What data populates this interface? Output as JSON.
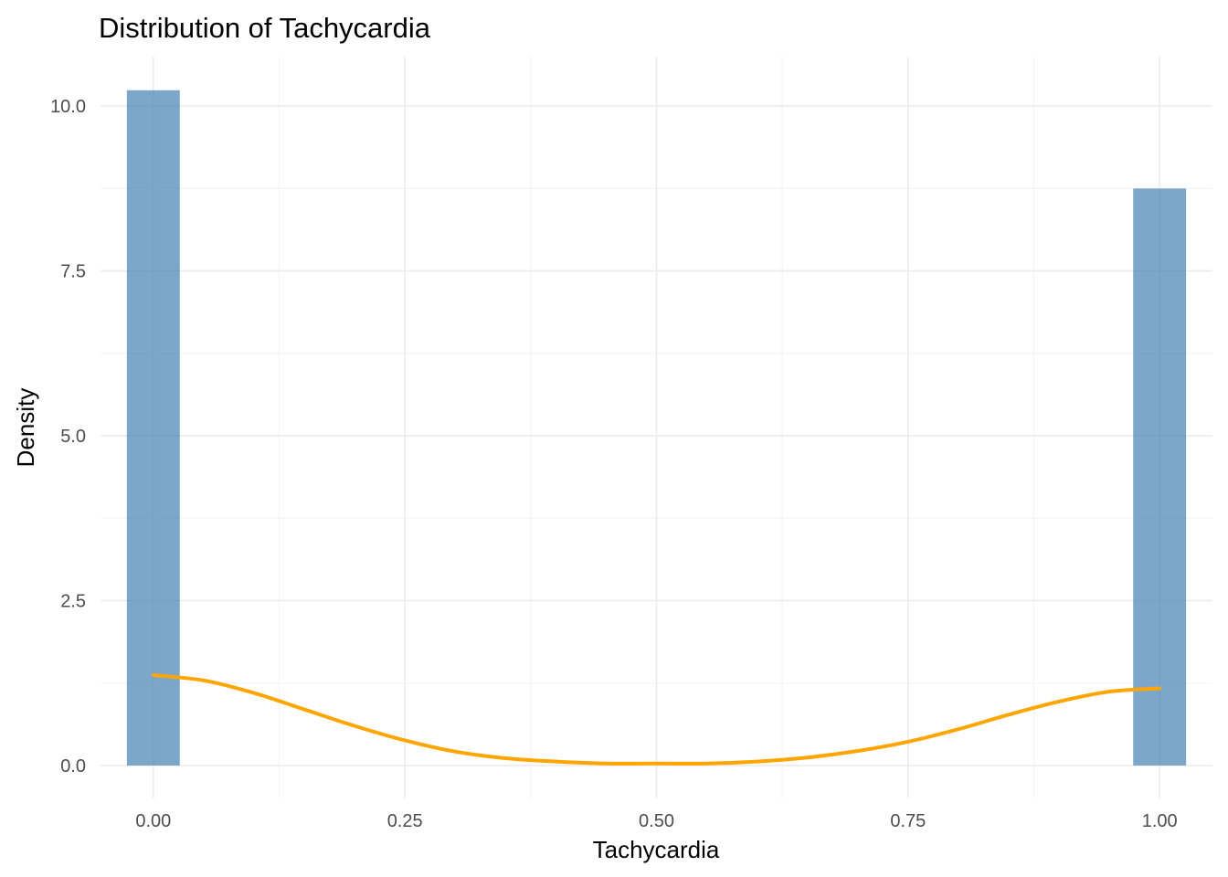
{
  "chart_data": {
    "type": "bar",
    "title": "Distribution of Tachycardia",
    "xlabel": "Tachycardia",
    "ylabel": "Density",
    "xlim": [
      -0.0525,
      1.0525
    ],
    "ylim": [
      -0.5,
      10.75
    ],
    "x_ticks": [
      0,
      0.25,
      0.5,
      0.75,
      1
    ],
    "x_tick_labels": [
      "0.00",
      "0.25",
      "0.50",
      "0.75",
      "1.00"
    ],
    "y_ticks": [
      0,
      2.5,
      5,
      7.5,
      10
    ],
    "y_tick_labels": [
      "0.0",
      "2.5",
      "5.0",
      "7.5",
      "10.0"
    ],
    "grid": true,
    "bin_width": 0.0526,
    "bars": [
      {
        "x0": -0.0263,
        "x1": 0.0263,
        "density": 10.24
      },
      {
        "x0": 0.9737,
        "x1": 1.0263,
        "density": 8.75
      }
    ],
    "density_curve": {
      "x": [
        0,
        0.05,
        0.1,
        0.15,
        0.2,
        0.25,
        0.3,
        0.35,
        0.4,
        0.45,
        0.5,
        0.55,
        0.6,
        0.65,
        0.7,
        0.75,
        0.8,
        0.85,
        0.9,
        0.95,
        1.0
      ],
      "y": [
        1.37,
        1.29,
        1.1,
        0.85,
        0.6,
        0.38,
        0.21,
        0.11,
        0.06,
        0.03,
        0.03,
        0.03,
        0.06,
        0.12,
        0.22,
        0.36,
        0.55,
        0.77,
        0.97,
        1.12,
        1.17
      ]
    },
    "colors": {
      "bar_fill": "#4682b4",
      "bar_opacity": 0.7,
      "curve": "#ffa500",
      "grid_major": "#ebebeb",
      "grid_minor": "#f4f4f4",
      "tick_label": "#4d4d4d",
      "text": "#000000"
    }
  }
}
